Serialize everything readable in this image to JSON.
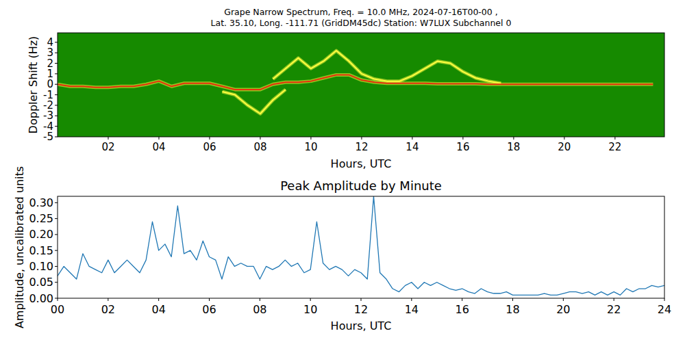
{
  "chart_data": [
    {
      "type": "line",
      "title": "Grape Narrow Spectrum, Freq. = 10.0 MHz, 2024-07-16T00-00 ,",
      "subtitle": "Lat.  35.10, Long. -111.71 (GridDM45dc) Station: W7LUX Subchannel 0",
      "x_label": "Hours, UTC",
      "y_label": "Doppler Shift (Hz)",
      "color": "#168a00",
      "grid": false,
      "xlim": [
        0,
        23.95
      ],
      "ylim": [
        -5,
        4.9
      ],
      "xticks": [
        {
          "value": 2,
          "label": "02"
        },
        {
          "value": 4,
          "label": "04"
        },
        {
          "value": 6,
          "label": "06"
        },
        {
          "value": 8,
          "label": "08"
        },
        {
          "value": 10,
          "label": "10"
        },
        {
          "value": 12,
          "label": "12"
        },
        {
          "value": 14,
          "label": "14"
        },
        {
          "value": 16,
          "label": "16"
        },
        {
          "value": 18,
          "label": "18"
        },
        {
          "value": 20,
          "label": "20"
        },
        {
          "value": 22,
          "label": "22"
        }
      ],
      "yticks": [
        4,
        3,
        2,
        1,
        0,
        -1,
        -2,
        -3,
        -4,
        -5
      ],
      "x": [
        0,
        0.5,
        1,
        1.5,
        2,
        2.5,
        3,
        3.5,
        4,
        4.5,
        5,
        5.5,
        6,
        6.5,
        7,
        7.5,
        8,
        8.5,
        9,
        9.5,
        10,
        10.5,
        11,
        11.5,
        12,
        12.5,
        13,
        13.5,
        14,
        14.5,
        15,
        15.5,
        16,
        16.5,
        17,
        17.5,
        18,
        18.5,
        19,
        19.5,
        20,
        20.5,
        21,
        21.5,
        22,
        22.5,
        23,
        23.5
      ],
      "series": [
        {
          "color": "#ffff40",
          "values": [
            null,
            null,
            null,
            null,
            null,
            null,
            null,
            null,
            null,
            null,
            null,
            null,
            null,
            -0.7,
            -1,
            -2,
            -2.8,
            -1.5,
            -0.5,
            null,
            null,
            null,
            null,
            null,
            null,
            null,
            null,
            null,
            null,
            null,
            null,
            null,
            null,
            null,
            null,
            null,
            null,
            null,
            null,
            null,
            null,
            null,
            null,
            null,
            null,
            null,
            null,
            null
          ]
        },
        {
          "color": "#ffff40",
          "values": [
            null,
            null,
            null,
            null,
            null,
            null,
            null,
            null,
            null,
            null,
            null,
            null,
            null,
            null,
            null,
            null,
            null,
            0.5,
            1.5,
            2.5,
            1.5,
            2.2,
            3.2,
            2.2,
            1,
            0.5,
            0.3,
            0.3,
            0.8,
            1.5,
            2.2,
            2,
            1.2,
            0.6,
            0.3,
            0.1,
            null,
            null,
            null,
            null,
            null,
            null,
            null,
            null,
            null,
            null,
            null,
            null
          ]
        },
        {
          "color": "#e8300c",
          "values": [
            0,
            -0.2,
            -0.2,
            -0.3,
            -0.3,
            -0.2,
            -0.2,
            0,
            0.3,
            -0.2,
            0.1,
            0.1,
            0.1,
            -0.2,
            -0.5,
            -0.5,
            -0.5,
            0,
            0.2,
            0.2,
            0.3,
            0.6,
            0.9,
            0.9,
            0.4,
            0.2,
            0.1,
            0.1,
            0.1,
            0.1,
            0.05,
            0.05,
            0.05,
            0.05,
            0,
            0,
            0,
            0,
            0,
            0,
            0,
            0,
            0,
            0,
            0,
            0,
            0,
            0
          ]
        }
      ]
    },
    {
      "type": "line",
      "title": "Peak Amplitude by Minute",
      "x_label": "Hours, UTC",
      "y_label": "Amplitude, uncalibrated units",
      "color": "#ffffff",
      "grid": false,
      "xlim": [
        0,
        24
      ],
      "ylim": [
        0,
        0.32
      ],
      "xticks": [
        {
          "value": 0,
          "label": "00"
        },
        {
          "value": 2,
          "label": "02"
        },
        {
          "value": 4,
          "label": "04"
        },
        {
          "value": 6,
          "label": "06"
        },
        {
          "value": 8,
          "label": "08"
        },
        {
          "value": 10,
          "label": "10"
        },
        {
          "value": 12,
          "label": "12"
        },
        {
          "value": 14,
          "label": "14"
        },
        {
          "value": 16,
          "label": "16"
        },
        {
          "value": 18,
          "label": "18"
        },
        {
          "value": 20,
          "label": "20"
        },
        {
          "value": 22,
          "label": "22"
        },
        {
          "value": 24,
          "label": "24"
        }
      ],
      "yticks": [
        {
          "value": 0,
          "label": "0.00"
        },
        0.05,
        {
          "value": 0.1,
          "label": "0.10"
        },
        0.15,
        {
          "value": 0.2,
          "label": "0.20"
        },
        0.25,
        {
          "value": 0.3,
          "label": "0.30"
        }
      ],
      "x": [
        0,
        0.25,
        0.5,
        0.75,
        1,
        1.25,
        1.5,
        1.75,
        2,
        2.25,
        2.5,
        2.75,
        3,
        3.25,
        3.5,
        3.75,
        4,
        4.25,
        4.5,
        4.75,
        5,
        5.25,
        5.5,
        5.75,
        6,
        6.25,
        6.5,
        6.75,
        7,
        7.25,
        7.5,
        7.75,
        8,
        8.25,
        8.5,
        8.75,
        9,
        9.25,
        9.5,
        9.75,
        10,
        10.25,
        10.5,
        10.75,
        11,
        11.25,
        11.5,
        11.75,
        12,
        12.25,
        12.5,
        12.75,
        13,
        13.25,
        13.5,
        13.75,
        14,
        14.25,
        14.5,
        14.75,
        15,
        15.25,
        15.5,
        15.75,
        16,
        16.25,
        16.5,
        16.75,
        17,
        17.25,
        17.5,
        17.75,
        18,
        18.25,
        18.5,
        18.75,
        19,
        19.25,
        19.5,
        19.75,
        20,
        20.25,
        20.5,
        20.75,
        21,
        21.25,
        21.5,
        21.75,
        22,
        22.25,
        22.5,
        22.75,
        23,
        23.25,
        23.5,
        23.75,
        24
      ],
      "series": [
        {
          "color": "#1f77b4",
          "values": [
            0.07,
            0.1,
            0.08,
            0.06,
            0.14,
            0.1,
            0.09,
            0.08,
            0.12,
            0.08,
            0.1,
            0.12,
            0.1,
            0.08,
            0.12,
            0.24,
            0.15,
            0.17,
            0.13,
            0.29,
            0.14,
            0.15,
            0.12,
            0.18,
            0.13,
            0.12,
            0.06,
            0.13,
            0.1,
            0.11,
            0.1,
            0.1,
            0.06,
            0.1,
            0.09,
            0.1,
            0.12,
            0.1,
            0.11,
            0.08,
            0.09,
            0.24,
            0.11,
            0.09,
            0.1,
            0.09,
            0.07,
            0.09,
            0.08,
            0.06,
            0.32,
            0.08,
            0.06,
            0.03,
            0.02,
            0.04,
            0.05,
            0.03,
            0.05,
            0.04,
            0.05,
            0.04,
            0.03,
            0.025,
            0.03,
            0.02,
            0.015,
            0.03,
            0.02,
            0.015,
            0.015,
            0.02,
            0.01,
            0.01,
            0.01,
            0.01,
            0.01,
            0.015,
            0.01,
            0.01,
            0.015,
            0.02,
            0.02,
            0.015,
            0.02,
            0.01,
            0.02,
            0.01,
            0.02,
            0.01,
            0.03,
            0.02,
            0.03,
            0.03,
            0.04,
            0.035,
            0.04
          ]
        }
      ]
    }
  ]
}
